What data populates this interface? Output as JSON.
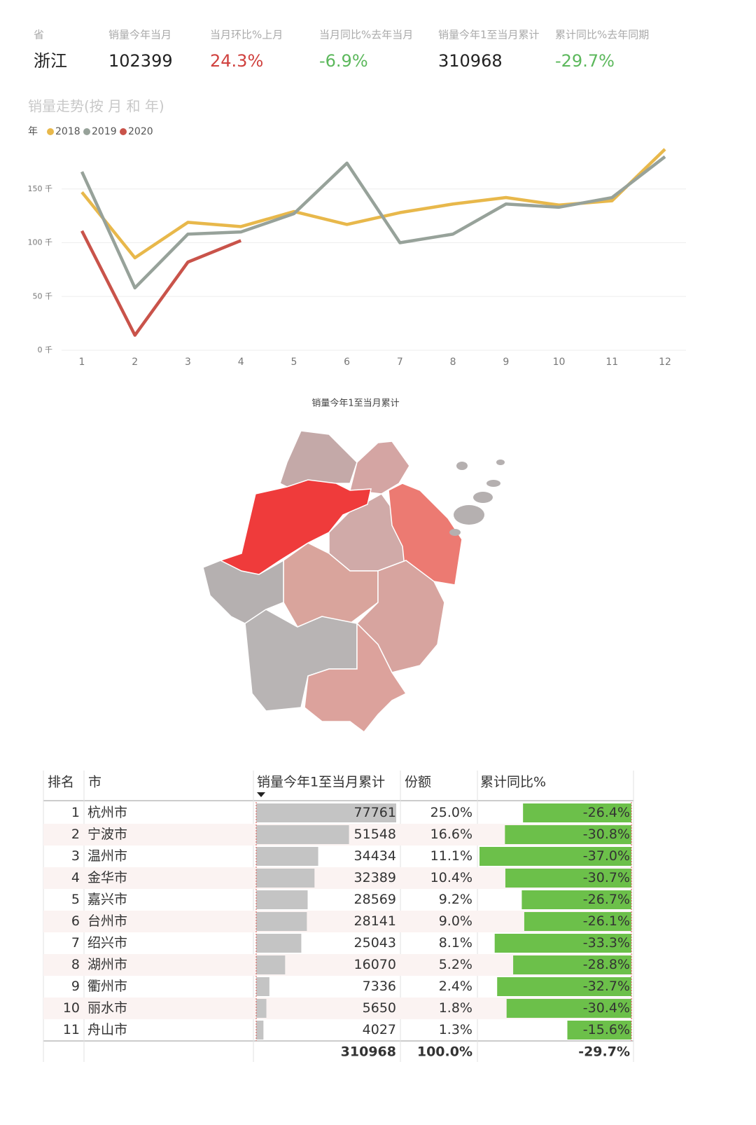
{
  "kpis": [
    {
      "label": "省",
      "value": "浙江",
      "color": "#222"
    },
    {
      "label": "销量今年当月",
      "value": "102399",
      "color": "#222"
    },
    {
      "label": "当月环比%上月",
      "value": "24.3%",
      "color": "#d0413e"
    },
    {
      "label": "当月同比%去年当月",
      "value": "-6.9%",
      "color": "#5cb85c"
    },
    {
      "label": "销量今年1至当月累计",
      "value": "310968",
      "color": "#222"
    },
    {
      "label": "累计同比%去年同期",
      "value": "-29.7%",
      "color": "#5cb85c"
    }
  ],
  "chart_data": [
    {
      "type": "line",
      "title": "销量走势(按 月 和 年)",
      "legend_title": "年",
      "categories": [
        "1",
        "2",
        "3",
        "4",
        "5",
        "6",
        "7",
        "8",
        "9",
        "10",
        "11",
        "12"
      ],
      "series": [
        {
          "name": "2018",
          "color": "#e8b84b",
          "values": [
            147,
            86,
            119,
            115,
            129,
            117,
            128,
            136,
            142,
            135,
            139,
            187
          ]
        },
        {
          "name": "2019",
          "color": "#97a29a",
          "values": [
            166,
            58,
            108,
            110,
            127,
            174,
            100,
            108,
            136,
            133,
            142,
            180
          ]
        },
        {
          "name": "2020",
          "color": "#c9534a",
          "values": [
            111,
            14,
            82,
            102,
            null,
            null,
            null,
            null,
            null,
            null,
            null,
            null
          ]
        }
      ],
      "ylim": [
        0,
        200
      ],
      "yticks": [
        {
          "value": 0,
          "label": "0 千"
        },
        {
          "value": 50,
          "label": "50 千"
        },
        {
          "value": 100,
          "label": "100 千"
        },
        {
          "value": 150,
          "label": "150 千"
        }
      ],
      "grid": true
    },
    {
      "type": "map",
      "title": "销量今年1至当月累计"
    }
  ],
  "table": {
    "headers": [
      "排名",
      "市",
      "销量今年1至当月累计",
      "份额",
      "累计同比%"
    ],
    "rows": [
      {
        "rank": "1",
        "city": "杭州市",
        "total": 77761,
        "share": "25.0%",
        "yoy": -26.4,
        "yoy_label": "-26.4%"
      },
      {
        "rank": "2",
        "city": "宁波市",
        "total": 51548,
        "share": "16.6%",
        "yoy": -30.8,
        "yoy_label": "-30.8%"
      },
      {
        "rank": "3",
        "city": "温州市",
        "total": 34434,
        "share": "11.1%",
        "yoy": -37.0,
        "yoy_label": "-37.0%"
      },
      {
        "rank": "4",
        "city": "金华市",
        "total": 32389,
        "share": "10.4%",
        "yoy": -30.7,
        "yoy_label": "-30.7%"
      },
      {
        "rank": "5",
        "city": "嘉兴市",
        "total": 28569,
        "share": "9.2%",
        "yoy": -26.7,
        "yoy_label": "-26.7%"
      },
      {
        "rank": "6",
        "city": "台州市",
        "total": 28141,
        "share": "9.0%",
        "yoy": -26.1,
        "yoy_label": "-26.1%"
      },
      {
        "rank": "7",
        "city": "绍兴市",
        "total": 25043,
        "share": "8.1%",
        "yoy": -33.3,
        "yoy_label": "-33.3%"
      },
      {
        "rank": "8",
        "city": "湖州市",
        "total": 16070,
        "share": "5.2%",
        "yoy": -28.8,
        "yoy_label": "-28.8%"
      },
      {
        "rank": "9",
        "city": "衢州市",
        "total": 7336,
        "share": "2.4%",
        "yoy": -32.7,
        "yoy_label": "-32.7%"
      },
      {
        "rank": "10",
        "city": "丽水市",
        "total": 5650,
        "share": "1.8%",
        "yoy": -30.4,
        "yoy_label": "-30.4%"
      },
      {
        "rank": "11",
        "city": "舟山市",
        "total": 4027,
        "share": "1.3%",
        "yoy": -15.6,
        "yoy_label": "-15.6%"
      }
    ],
    "total_row": {
      "total": "310968",
      "share": "100.0%",
      "yoy": "-29.7%"
    }
  }
}
